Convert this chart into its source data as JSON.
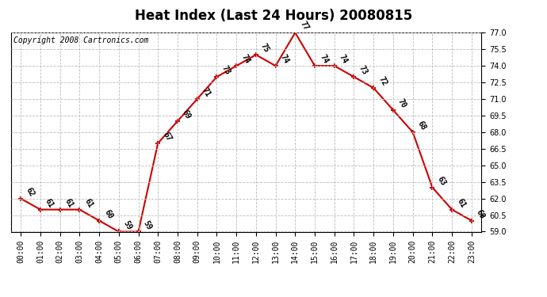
{
  "title": "Heat Index (Last 24 Hours) 20080815",
  "copyright": "Copyright 2008 Cartronics.com",
  "hours": [
    "00:00",
    "01:00",
    "02:00",
    "03:00",
    "04:00",
    "05:00",
    "06:00",
    "07:00",
    "08:00",
    "09:00",
    "10:00",
    "11:00",
    "12:00",
    "13:00",
    "14:00",
    "15:00",
    "16:00",
    "17:00",
    "18:00",
    "19:00",
    "20:00",
    "21:00",
    "22:00",
    "23:00"
  ],
  "values": [
    62,
    61,
    61,
    61,
    60,
    59,
    59,
    67,
    69,
    71,
    73,
    74,
    75,
    74,
    77,
    74,
    74,
    73,
    72,
    70,
    68,
    63,
    61,
    60
  ],
  "line_color": "#cc0000",
  "marker_color": "#cc0000",
  "ylim": [
    59.0,
    77.0
  ],
  "ytick_values": [
    59.0,
    60.5,
    62.0,
    63.5,
    65.0,
    66.5,
    68.0,
    69.5,
    71.0,
    72.5,
    74.0,
    75.5,
    77.0
  ],
  "grid_color": "#bbbbbb",
  "grid_style": "--",
  "bg_color": "#ffffff",
  "title_fontsize": 12,
  "copyright_fontsize": 7,
  "tick_fontsize": 7,
  "annotation_fontsize": 7,
  "annotation_rotation": -60
}
